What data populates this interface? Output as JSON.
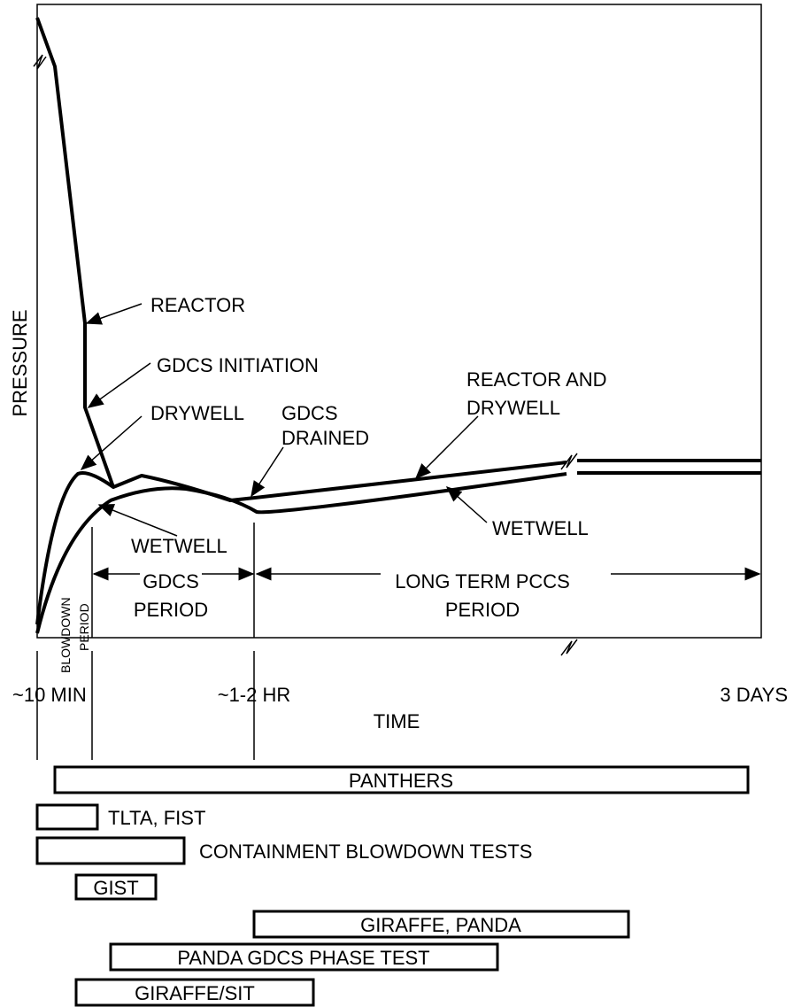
{
  "axes": {
    "y_label": "PRESSURE",
    "x_label": "TIME",
    "x_ticks": [
      "~10 MIN",
      "~1-2 HR",
      "3 DAYS"
    ]
  },
  "curve_labels": {
    "reactor": "REACTOR",
    "gdcs_initiation": "GDCS INITIATION",
    "drywell": "DRYWELL",
    "gdcs_drained": [
      "GDCS",
      "DRAINED"
    ],
    "reactor_and_drywell": [
      "REACTOR AND",
      "DRYWELL"
    ],
    "wetwell_right": "WETWELL",
    "wetwell_left": "WETWELL"
  },
  "periods": {
    "blowdown": [
      "BLOWDOWN",
      "PERIOD"
    ],
    "gdcs": [
      "GDCS",
      "PERIOD"
    ],
    "long_term": [
      "LONG TERM PCCS",
      "PERIOD"
    ]
  },
  "tests": [
    "PANTHERS",
    "TLTA, FIST",
    "CONTAINMENT BLOWDOWN TESTS",
    "GIST",
    "GIRAFFE, PANDA",
    "PANDA GDCS PHASE TEST",
    "GIRAFFE/SIT"
  ]
}
